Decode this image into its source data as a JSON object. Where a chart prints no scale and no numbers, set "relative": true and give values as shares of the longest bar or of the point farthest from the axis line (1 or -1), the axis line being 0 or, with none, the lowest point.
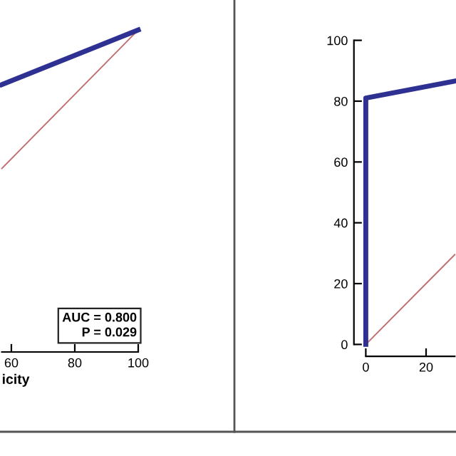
{
  "chart_data": [
    {
      "type": "line",
      "relative": true,
      "xlabel": "icity",
      "xlim": [
        57,
        100
      ],
      "xticks": [
        60,
        80,
        100
      ],
      "annotations": [
        "AUC = 0.800\nP = 0.029"
      ],
      "series": [
        {
          "color": "#2e3192",
          "x": [
            57,
            100
          ],
          "values": [
            0.83,
            1
          ]
        },
        {
          "color": "#c07070",
          "x": [
            57,
            100
          ],
          "values": [
            0.57,
            1
          ]
        }
      ]
    },
    {
      "type": "line",
      "xlim": [
        0,
        29.5
      ],
      "ylim": [
        0,
        100
      ],
      "xticks": [
        0,
        20
      ],
      "yticks": [
        0,
        20,
        40,
        60,
        80,
        100
      ],
      "series": [
        {
          "color": "#2e3192",
          "x": [
            0,
            0,
            29.5
          ],
          "values": [
            0,
            81,
            86.6
          ]
        },
        {
          "color": "#c07070",
          "x": [
            0,
            29.5
          ],
          "values": [
            0,
            29.5
          ]
        }
      ]
    }
  ]
}
